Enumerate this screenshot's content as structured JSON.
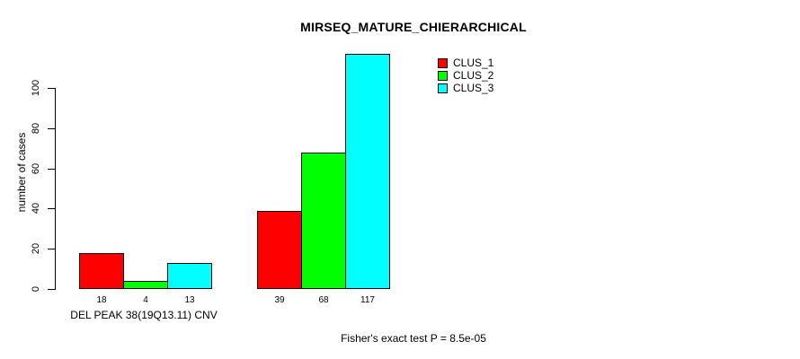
{
  "title": "MIRSEQ_MATURE_CHIERARCHICAL",
  "y_axis": {
    "label": "number of cases",
    "ticks": [
      0,
      20,
      40,
      60,
      80,
      100
    ]
  },
  "x_axis": {
    "label": "DEL PEAK 38(19Q13.11) CNV"
  },
  "legend": {
    "items": [
      {
        "label": "CLUS_1",
        "color": "#ff0000"
      },
      {
        "label": "CLUS_2",
        "color": "#00ff00"
      },
      {
        "label": "CLUS_3",
        "color": "#00ffff"
      }
    ]
  },
  "footer": "Fisher's exact test P = 8.5e-05",
  "colors": {
    "background": "#ffffff",
    "axis": "#000000",
    "bar_border": "#000000",
    "clus_1": "#ff0000",
    "clus_2": "#00ff00",
    "clus_3": "#00ffff"
  },
  "chart_data": {
    "type": "bar",
    "title": "MIRSEQ_MATURE_CHIERARCHICAL",
    "categories": [
      "DEL PEAK 38(19Q13.11) CNV",
      ""
    ],
    "series": [
      {
        "name": "CLUS_1",
        "color": "#ff0000",
        "values": [
          18,
          39
        ]
      },
      {
        "name": "CLUS_2",
        "color": "#00ff00",
        "values": [
          4,
          68
        ]
      },
      {
        "name": "CLUS_3",
        "color": "#00ffff",
        "values": [
          13,
          117
        ]
      }
    ],
    "xlabel": "",
    "ylabel": "number of cases",
    "ylim": [
      0,
      117
    ],
    "yticks": [
      0,
      20,
      40,
      60,
      80,
      100
    ],
    "bar_value_labels": [
      [
        18,
        4,
        13
      ],
      [
        39,
        68,
        117
      ]
    ],
    "grid": false,
    "legend_position": "top-right",
    "annotation": "Fisher's exact test P = 8.5e-05"
  }
}
